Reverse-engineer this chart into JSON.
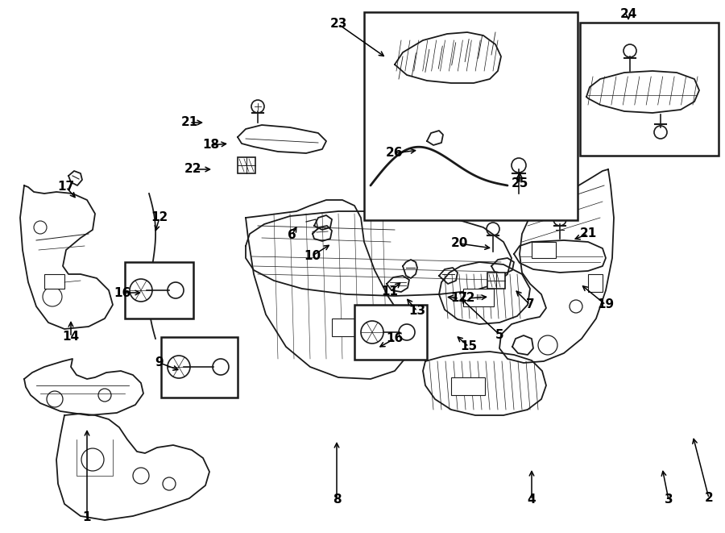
{
  "bg_color": "#ffffff",
  "line_color": "#1a1a1a",
  "figsize": [
    9.0,
    6.61
  ],
  "dpi": 100,
  "title_fontsize": 10,
  "label_fontsize": 11
}
